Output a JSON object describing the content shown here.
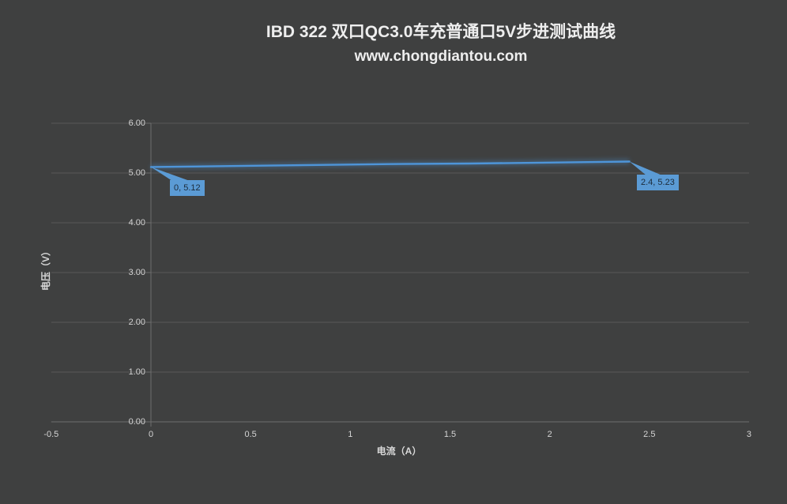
{
  "chart_data": {
    "type": "line",
    "title": "IBD 322 双口QC3.0车充普通口5V步进测试曲线",
    "subtitle": "www.chongdiantou.com",
    "xlabel": "电流（A）",
    "ylabel": "电压（V）",
    "xlim": [
      -0.5,
      3
    ],
    "ylim": [
      0,
      6
    ],
    "x_ticks": [
      -0.5,
      0,
      0.5,
      1,
      1.5,
      2,
      2.5,
      3
    ],
    "x_tick_labels": [
      "-0.5",
      "0",
      "0.5",
      "1",
      "1.5",
      "2",
      "2.5",
      "3"
    ],
    "y_ticks": [
      0,
      1,
      2,
      3,
      4,
      5,
      6
    ],
    "y_tick_labels": [
      "0.00",
      "1.00",
      "2.00",
      "3.00",
      "4.00",
      "5.00",
      "6.00"
    ],
    "grid": "horizontal-major-only",
    "legend": "none",
    "series": [
      {
        "color": "#4e95d9",
        "x": [
          0,
          0.4,
          0.8,
          1.2,
          1.6,
          2.0,
          2.4
        ],
        "y": [
          5.12,
          5.14,
          5.16,
          5.18,
          5.19,
          5.21,
          5.23
        ]
      }
    ],
    "data_labels": [
      {
        "text": "0, 5.12",
        "x": 0,
        "y": 5.12
      },
      {
        "text": "2.4, 5.23",
        "x": 2.4,
        "y": 5.23
      }
    ]
  },
  "colors": {
    "background": "#3f4040",
    "gridline": "#595959",
    "axis": "#6e6e6e",
    "title_text": "#eeeeee",
    "tick_text": "#d4d4d4",
    "accent_blue": "#5b9bd5",
    "line_blue": "#4e95d9",
    "label_text": "#1c2b3a"
  }
}
